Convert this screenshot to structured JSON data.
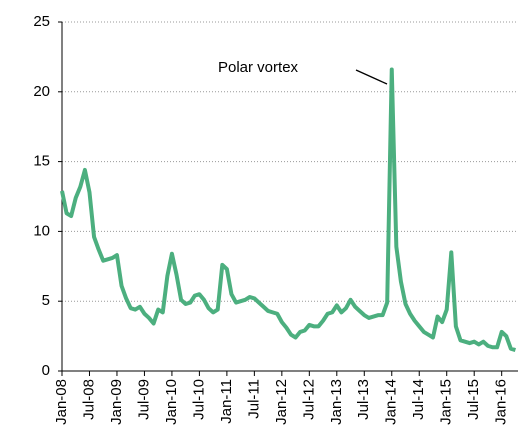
{
  "chart_data": {
    "type": "line",
    "annotation": "Polar vortex",
    "categories": [
      "Jan-08",
      null,
      null,
      null,
      null,
      null,
      "Jul-08",
      null,
      null,
      null,
      null,
      null,
      "Jan-09",
      null,
      null,
      null,
      null,
      null,
      "Jul-09",
      null,
      null,
      null,
      null,
      null,
      "Jan-10",
      null,
      null,
      null,
      null,
      null,
      "Jul-10",
      null,
      null,
      null,
      null,
      null,
      "Jan-11",
      null,
      null,
      null,
      null,
      null,
      "Jul-11",
      null,
      null,
      null,
      null,
      null,
      "Jan-12",
      null,
      null,
      null,
      null,
      null,
      "Jul-12",
      null,
      null,
      null,
      null,
      null,
      "Jan-13",
      null,
      null,
      null,
      null,
      null,
      "Jul-13",
      null,
      null,
      null,
      null,
      null,
      "Jan-14",
      null,
      null,
      null,
      null,
      null,
      "Jul-14",
      null,
      null,
      null,
      null,
      null,
      "Jan-15",
      null,
      null,
      null,
      null,
      null,
      "Jul-15",
      null,
      null,
      null,
      null,
      null,
      "Jan-16",
      null,
      null,
      null
    ],
    "values": [
      12.9,
      11.3,
      11.1,
      12.4,
      13.2,
      14.4,
      12.8,
      9.6,
      8.7,
      7.9,
      8.0,
      8.1,
      8.3,
      6.1,
      5.2,
      4.5,
      4.4,
      4.6,
      4.1,
      3.8,
      3.4,
      4.4,
      4.2,
      6.8,
      8.4,
      6.9,
      5.1,
      4.8,
      4.9,
      5.4,
      5.5,
      5.1,
      4.5,
      4.2,
      4.4,
      7.6,
      7.3,
      5.5,
      4.9,
      5.0,
      5.1,
      5.3,
      5.2,
      4.9,
      4.6,
      4.3,
      4.2,
      4.1,
      3.5,
      3.1,
      2.6,
      2.4,
      2.8,
      2.9,
      3.3,
      3.2,
      3.2,
      3.6,
      4.1,
      4.2,
      4.7,
      4.2,
      4.5,
      5.1,
      4.6,
      4.3,
      4.0,
      3.8,
      3.9,
      4.0,
      4.0,
      4.9,
      21.6,
      8.9,
      6.4,
      4.8,
      4.1,
      3.6,
      3.2,
      2.8,
      2.6,
      2.4,
      3.9,
      3.5,
      4.4,
      8.5,
      3.2,
      2.2,
      2.1,
      2.0,
      2.1,
      1.9,
      2.1,
      1.8,
      1.7,
      1.7,
      2.8,
      2.5,
      1.6,
      1.5
    ],
    "color": "#4caf7f",
    "ylim": [
      0,
      25
    ],
    "yticks": [
      0,
      5,
      10,
      15,
      20,
      25
    ],
    "grid": true
  }
}
